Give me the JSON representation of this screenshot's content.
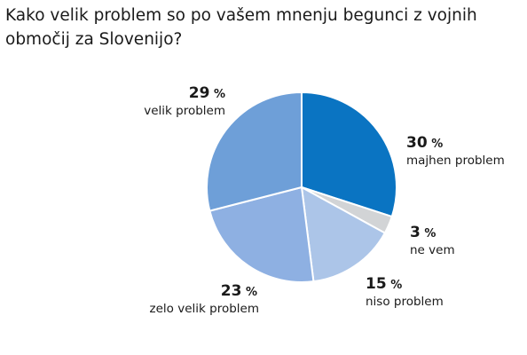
{
  "chart_data": {
    "type": "pie",
    "title": "Kako velik problem so po vašem mnenju begunci z vojnih območij za Slovenijo?",
    "slices": [
      {
        "label": "majhen problem",
        "value": 30,
        "value_text": "30",
        "unit": "%",
        "color": "#0a74c2"
      },
      {
        "label": "ne vem",
        "value": 3,
        "value_text": "3",
        "unit": "%",
        "color": "#d2d4d6"
      },
      {
        "label": "niso problem",
        "value": 15,
        "value_text": "15",
        "unit": "%",
        "color": "#acc5e8"
      },
      {
        "label": "zelo velik problem",
        "value": 23,
        "value_text": "23",
        "unit": "%",
        "color": "#8eb0e2"
      },
      {
        "label": "velik problem",
        "value": 29,
        "value_text": "29",
        "unit": "%",
        "color": "#6e9fd8"
      }
    ]
  }
}
